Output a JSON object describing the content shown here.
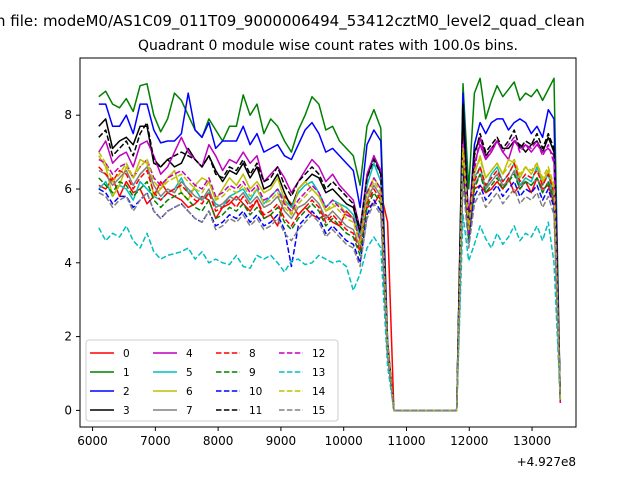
{
  "figure": {
    "suptitle": "n file: modeM0/AS1C09_011T09_9000006494_53412cztM0_level2_quad_clean",
    "title": "Quadrant 0 module wise count rates with 100.0s bins.",
    "offset_text": "+4.927e8"
  },
  "chart_data": {
    "type": "line",
    "title": "Quadrant 0 module wise count rates with 100.0s bins.",
    "xlabel": "",
    "ylabel": "",
    "xlim": [
      5800,
      13700
    ],
    "ylim": [
      -0.45,
      9.55
    ],
    "xticks": [
      6000,
      7000,
      8000,
      9000,
      10000,
      11000,
      12000,
      13000
    ],
    "xtick_labels": [
      "6000",
      "7000",
      "8000",
      "9000",
      "10000",
      "11000",
      "12000",
      "13000"
    ],
    "yticks": [
      0,
      2,
      4,
      6,
      8
    ],
    "ytick_labels": [
      "0",
      "2",
      "4",
      "6",
      "8"
    ],
    "x_offset": "+4.927e8",
    "grid": false,
    "legend_placement": "lower-left",
    "legend_columns": 4,
    "gap_start": 10800,
    "gap_end": 11800,
    "series": [
      {
        "name": "0",
        "color": "#ff0000",
        "dash": "solid",
        "first": [
          6.1,
          6.0,
          6.3,
          5.8,
          6.2,
          5.9,
          6.0,
          5.6,
          5.8,
          6.2,
          5.9,
          5.8,
          5.7,
          5.5,
          5.6,
          5.8,
          5.7,
          5.2,
          5.5,
          5.6,
          5.8,
          5.6,
          5.4,
          5.7,
          5.2,
          5.3,
          5.0,
          5.8,
          5.6,
          5.3,
          5.5,
          5.3,
          5.2,
          5.3,
          5.1,
          5.0,
          5.4,
          5.2,
          4.6,
          5.5,
          5.6,
          5.9,
          5.1
        ],
        "second": [
          7.6,
          4.8,
          6.0,
          6.1,
          5.9,
          6.0,
          6.2,
          6.0,
          6.3,
          5.9,
          6.1,
          6.2,
          5.9,
          6.3,
          6.0,
          6.1,
          5.6
        ]
      },
      {
        "name": "1",
        "color": "#008000",
        "dash": "solid",
        "first": [
          8.5,
          8.65,
          8.3,
          8.2,
          8.45,
          8.1,
          8.8,
          8.85,
          8.0,
          7.55,
          7.9,
          8.6,
          8.4,
          8.0,
          7.6,
          7.4,
          7.9,
          7.6,
          7.3,
          7.7,
          7.7,
          8.55,
          8.0,
          8.3,
          7.5,
          7.9,
          7.7,
          7.3,
          7.0,
          7.6,
          8.0,
          8.5,
          8.3,
          7.6,
          7.7,
          7.3,
          7.1,
          6.9,
          6.1,
          7.7,
          8.15,
          7.65,
          1.9
        ],
        "second": [
          8.85,
          6.0,
          8.6,
          9.0,
          7.9,
          8.4,
          8.8,
          8.5,
          8.7,
          8.9,
          8.4,
          8.6,
          8.5,
          8.7,
          8.4,
          8.7,
          9.0
        ]
      },
      {
        "name": "2",
        "color": "#0000ff",
        "dash": "solid",
        "first": [
          8.3,
          8.3,
          7.7,
          7.7,
          8.0,
          7.5,
          8.3,
          8.3,
          7.6,
          7.25,
          7.3,
          7.3,
          7.5,
          8.6,
          7.6,
          7.4,
          7.8,
          7.1,
          7.3,
          7.3,
          7.3,
          7.7,
          7.2,
          7.5,
          7.0,
          7.1,
          7.2,
          6.9,
          6.8,
          7.2,
          7.6,
          7.8,
          7.5,
          7.0,
          7.1,
          6.9,
          6.7,
          6.5,
          5.5,
          7.2,
          7.6,
          7.3,
          1.8
        ],
        "second": [
          8.6,
          5.0,
          7.2,
          7.8,
          7.5,
          7.8,
          7.9,
          7.9,
          7.6,
          7.8,
          7.9,
          7.8,
          7.5,
          7.7,
          7.4,
          8.15,
          7.9
        ]
      },
      {
        "name": "3",
        "color": "#000000",
        "dash": "solid",
        "first": [
          7.7,
          7.9,
          7.1,
          7.3,
          7.4,
          7.2,
          7.7,
          7.7,
          6.7,
          6.6,
          6.8,
          6.6,
          6.7,
          7.1,
          6.8,
          6.6,
          6.9,
          6.5,
          6.2,
          6.5,
          6.4,
          6.7,
          6.3,
          6.6,
          6.0,
          6.1,
          6.4,
          5.9,
          5.5,
          6.0,
          6.2,
          6.4,
          6.3,
          5.9,
          6.0,
          5.8,
          5.6,
          5.5,
          4.8,
          6.3,
          6.9,
          6.4,
          1.7
        ],
        "second": [
          8.2,
          4.7,
          7.0,
          7.4,
          6.9,
          7.1,
          7.3,
          7.1,
          7.1,
          7.3,
          7.2,
          7.0,
          7.2,
          7.3,
          7.0,
          7.4,
          7.0
        ]
      },
      {
        "name": "4",
        "color": "#bf00bf",
        "dash": "solid",
        "first": [
          7.0,
          7.3,
          6.7,
          6.9,
          7.0,
          6.6,
          7.2,
          7.3,
          6.9,
          6.4,
          6.6,
          7.0,
          7.4,
          7.0,
          6.8,
          6.6,
          7.2,
          6.9,
          6.5,
          6.8,
          6.7,
          7.0,
          6.7,
          6.9,
          6.2,
          6.4,
          6.6,
          6.3,
          5.9,
          6.2,
          6.5,
          6.8,
          6.6,
          6.2,
          6.4,
          6.1,
          5.9,
          5.7,
          4.9,
          6.4,
          6.9,
          6.5,
          1.8
        ],
        "second": [
          7.3,
          5.3,
          6.7,
          7.2,
          6.8,
          7.0,
          7.3,
          7.0,
          6.8,
          7.3,
          7.1,
          7.2,
          7.0,
          7.2,
          7.0,
          7.1,
          6.9
        ]
      },
      {
        "name": "5",
        "color": "#00bfbf",
        "dash": "solid",
        "first": [
          6.0,
          6.2,
          5.8,
          6.1,
          6.0,
          5.7,
          6.2,
          6.0,
          5.8,
          5.7,
          5.9,
          6.0,
          6.3,
          5.9,
          6.0,
          5.7,
          5.9,
          5.6,
          5.5,
          5.8,
          5.9,
          6.0,
          5.7,
          6.0,
          5.6,
          5.8,
          6.0,
          5.7,
          5.5,
          5.9,
          6.1,
          6.2,
          5.9,
          5.5,
          5.7,
          5.6,
          5.5,
          5.3,
          4.7,
          6.1,
          6.7,
          6.2,
          1.7
        ],
        "second": [
          6.8,
          5.1,
          6.3,
          6.6,
          6.0,
          6.4,
          6.6,
          6.2,
          6.4,
          6.7,
          6.1,
          6.3,
          6.2,
          6.6,
          6.1,
          6.4,
          5.8
        ]
      },
      {
        "name": "6",
        "color": "#bfbf00",
        "dash": "solid",
        "first": [
          6.9,
          6.6,
          5.8,
          6.1,
          6.6,
          6.3,
          6.8,
          6.7,
          5.8,
          6.0,
          6.3,
          6.5,
          5.9,
          5.7,
          6.1,
          6.3,
          6.2,
          5.7,
          6.0,
          6.3,
          6.1,
          6.4,
          6.0,
          6.2,
          5.9,
          6.0,
          6.3,
          5.7,
          5.3,
          6.0,
          6.2,
          6.0,
          5.8,
          5.4,
          5.5,
          5.6,
          5.3,
          5.2,
          4.6,
          5.9,
          6.3,
          6.0,
          1.7
        ],
        "second": [
          7.2,
          5.0,
          6.4,
          6.9,
          6.3,
          6.5,
          6.7,
          6.4,
          6.8,
          6.7,
          6.3,
          6.6,
          6.4,
          6.7,
          6.2,
          6.5,
          6.0
        ]
      },
      {
        "name": "7",
        "color": "#808080",
        "dash": "solid",
        "first": [
          6.5,
          6.4,
          6.1,
          6.3,
          6.5,
          6.1,
          6.4,
          6.6,
          6.1,
          5.8,
          6.0,
          5.9,
          6.2,
          6.0,
          5.8,
          5.7,
          6.0,
          5.5,
          5.6,
          5.8,
          5.7,
          5.9,
          5.6,
          5.8,
          5.5,
          5.6,
          5.8,
          5.4,
          5.2,
          5.5,
          5.6,
          5.8,
          5.6,
          5.2,
          5.4,
          5.2,
          5.0,
          4.9,
          4.4,
          5.7,
          6.1,
          5.8,
          1.6
        ],
        "second": [
          6.6,
          4.7,
          6.1,
          6.4,
          6.0,
          6.2,
          6.4,
          6.1,
          6.2,
          6.5,
          6.0,
          6.2,
          6.1,
          6.3,
          5.9,
          6.2,
          5.7
        ]
      },
      {
        "name": "8",
        "color": "#ff0000",
        "dash": "dashed",
        "first": [
          6.6,
          6.4,
          6.2,
          6.5,
          6.4,
          6.0,
          6.3,
          6.5,
          5.9,
          5.7,
          5.9,
          6.0,
          6.1,
          5.9,
          5.7,
          5.6,
          5.9,
          5.4,
          5.5,
          5.7,
          5.5,
          5.8,
          5.5,
          5.7,
          5.3,
          5.4,
          5.6,
          5.2,
          5.0,
          5.3,
          5.5,
          5.7,
          5.5,
          5.1,
          5.3,
          5.1,
          4.9,
          4.8,
          4.3,
          5.6,
          6.0,
          5.7,
          1.6
        ],
        "second": [
          7.0,
          4.7,
          6.2,
          6.6,
          6.1,
          6.3,
          6.5,
          6.2,
          6.4,
          6.7,
          6.2,
          6.4,
          6.3,
          6.5,
          6.1,
          6.4,
          5.9
        ]
      },
      {
        "name": "9",
        "color": "#008000",
        "dash": "dashed",
        "first": [
          6.3,
          6.1,
          5.9,
          6.2,
          6.1,
          5.8,
          6.0,
          6.2,
          5.7,
          5.5,
          5.7,
          5.8,
          5.9,
          5.7,
          5.5,
          5.4,
          5.7,
          5.2,
          5.3,
          5.5,
          5.4,
          5.6,
          5.3,
          5.5,
          5.2,
          5.3,
          5.5,
          5.1,
          4.9,
          5.2,
          5.4,
          5.6,
          5.4,
          5.0,
          5.2,
          5.0,
          4.8,
          4.7,
          4.2,
          5.5,
          5.9,
          5.6,
          1.6
        ],
        "second": [
          6.7,
          4.6,
          6.0,
          6.4,
          5.9,
          6.1,
          6.3,
          6.0,
          6.2,
          6.4,
          6.0,
          6.2,
          6.1,
          6.3,
          5.9,
          6.2,
          5.7
        ]
      },
      {
        "name": "10",
        "color": "#0000ff",
        "dash": "dashed",
        "first": [
          6.0,
          5.9,
          5.6,
          5.8,
          5.8,
          5.5,
          5.7,
          5.9,
          5.4,
          5.2,
          5.4,
          5.5,
          5.6,
          5.4,
          5.2,
          5.1,
          5.4,
          5.0,
          5.1,
          5.3,
          5.2,
          5.4,
          5.1,
          5.3,
          5.0,
          5.1,
          5.3,
          4.9,
          3.9,
          5.0,
          5.2,
          5.4,
          5.2,
          4.8,
          5.0,
          4.8,
          4.6,
          4.5,
          4.0,
          5.3,
          5.7,
          5.4,
          1.5
        ],
        "second": [
          6.4,
          4.5,
          5.8,
          6.1,
          5.7,
          5.9,
          6.1,
          5.8,
          6.0,
          6.2,
          5.8,
          6.0,
          5.9,
          6.1,
          5.7,
          6.0,
          5.5
        ]
      },
      {
        "name": "11",
        "color": "#000000",
        "dash": "dashed",
        "first": [
          7.4,
          7.6,
          6.9,
          7.1,
          7.3,
          6.9,
          7.5,
          7.8,
          6.8,
          6.6,
          6.8,
          6.9,
          7.0,
          6.9,
          6.8,
          6.6,
          6.9,
          6.4,
          6.3,
          6.6,
          6.5,
          6.8,
          6.4,
          6.7,
          6.2,
          6.3,
          6.6,
          6.1,
          5.8,
          6.2,
          6.4,
          6.6,
          6.4,
          6.0,
          6.2,
          6.0,
          5.8,
          5.6,
          4.9,
          6.3,
          6.8,
          6.4,
          1.7
        ],
        "second": [
          8.3,
          4.9,
          6.9,
          7.5,
          7.0,
          7.2,
          7.4,
          7.1,
          7.3,
          7.6,
          7.1,
          7.3,
          7.2,
          7.5,
          7.1,
          7.5,
          7.1
        ]
      },
      {
        "name": "12",
        "color": "#bf00bf",
        "dash": "dashed",
        "first": [
          6.8,
          6.7,
          6.4,
          6.6,
          6.7,
          6.3,
          6.6,
          6.8,
          6.3,
          6.1,
          6.3,
          6.4,
          6.5,
          6.3,
          6.1,
          6.0,
          6.3,
          5.8,
          5.9,
          6.1,
          6.0,
          6.2,
          5.9,
          6.1,
          5.7,
          5.8,
          6.0,
          5.6,
          5.4,
          5.7,
          5.9,
          6.1,
          5.9,
          5.5,
          5.7,
          5.5,
          5.3,
          5.2,
          4.6,
          5.9,
          6.3,
          6.0,
          1.7
        ],
        "second": [
          7.2,
          4.8,
          6.5,
          7.4,
          6.8,
          7.1,
          7.3,
          7.0,
          7.2,
          7.4,
          7.0,
          7.2,
          7.1,
          7.3,
          6.9,
          7.2,
          6.7
        ]
      },
      {
        "name": "13",
        "color": "#00bfbf",
        "dash": "dashed",
        "first": [
          4.95,
          4.6,
          4.8,
          4.7,
          5.0,
          4.6,
          4.4,
          4.8,
          4.3,
          4.1,
          4.2,
          4.25,
          4.3,
          4.4,
          4.1,
          4.3,
          4.0,
          4.1,
          4.0,
          3.95,
          4.2,
          3.9,
          3.85,
          4.2,
          4.1,
          4.2,
          4.0,
          3.75,
          4.05,
          4.1,
          3.95,
          4.0,
          4.2,
          4.1,
          4.0,
          4.05,
          3.9,
          3.25,
          3.7,
          4.4,
          4.7,
          4.4,
          1.2
        ],
        "second": [
          5.3,
          4.05,
          4.5,
          5.0,
          4.65,
          4.4,
          4.8,
          4.5,
          4.7,
          5.0,
          4.6,
          4.8,
          4.7,
          5.0,
          4.6,
          5.1,
          4.0
        ]
      },
      {
        "name": "14",
        "color": "#bfbf00",
        "dash": "dashed",
        "first": [
          7.0,
          6.7,
          6.2,
          6.4,
          6.7,
          6.3,
          6.6,
          6.8,
          6.2,
          6.0,
          6.2,
          6.3,
          6.4,
          6.2,
          6.0,
          5.9,
          6.2,
          5.7,
          5.8,
          6.0,
          5.9,
          6.1,
          5.8,
          6.0,
          5.6,
          5.7,
          5.9,
          5.5,
          5.3,
          5.6,
          5.8,
          6.0,
          5.8,
          5.4,
          5.6,
          5.4,
          5.2,
          5.1,
          4.5,
          5.8,
          6.2,
          5.9,
          1.7
        ],
        "second": [
          7.1,
          4.9,
          6.5,
          6.8,
          6.3,
          6.5,
          6.7,
          6.4,
          6.6,
          6.8,
          6.4,
          6.6,
          6.5,
          6.7,
          6.3,
          6.6,
          6.1
        ]
      },
      {
        "name": "15",
        "color": "#808080",
        "dash": "dashed",
        "first": [
          5.9,
          5.8,
          5.5,
          5.7,
          5.8,
          5.4,
          5.7,
          5.9,
          5.4,
          5.2,
          5.4,
          5.5,
          5.6,
          5.4,
          5.2,
          5.1,
          5.4,
          4.9,
          5.0,
          5.2,
          5.1,
          5.3,
          5.0,
          5.2,
          4.9,
          5.0,
          5.2,
          4.8,
          4.6,
          4.9,
          5.1,
          5.3,
          5.1,
          4.7,
          4.9,
          4.7,
          4.5,
          4.4,
          3.9,
          5.2,
          5.6,
          5.3,
          1.5
        ],
        "second": [
          6.2,
          4.4,
          5.6,
          5.9,
          5.5,
          5.7,
          5.9,
          5.6,
          5.8,
          6.0,
          5.6,
          5.8,
          5.7,
          5.9,
          5.5,
          5.8,
          5.3
        ]
      }
    ]
  }
}
